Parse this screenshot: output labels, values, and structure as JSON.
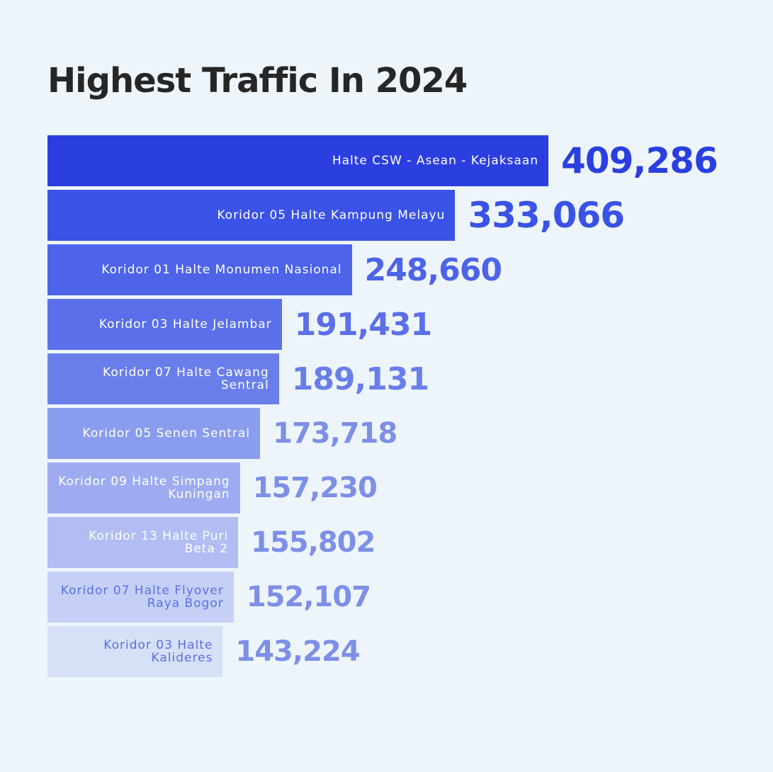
{
  "chart_data": {
    "type": "bar",
    "orientation": "horizontal",
    "title": "Highest Traffic In 2024",
    "categories": [
      "Halte CSW - Asean - Kejaksaan",
      "Koridor 05 Halte Kampung Melayu",
      "Koridor 01 Halte Monumen Nasional",
      "Koridor 03 Halte Jelambar",
      "Koridor 07 Halte Cawang Sentral",
      "Koridor 05 Senen Sentral",
      "Koridor 09 Halte Simpang Kuningan",
      "Koridor 13 Halte Puri Beta 2",
      "Koridor 07 Halte Flyover Raya Bogor",
      "Koridor 03 Halte Kalideres"
    ],
    "values": [
      409286,
      333066,
      248660,
      191431,
      189131,
      173718,
      157230,
      155802,
      152107,
      143224
    ],
    "value_labels": [
      "409,286",
      "333,066",
      "248,660",
      "191,431",
      "189,131",
      "173,718",
      "157,230",
      "155,802",
      "152,107",
      "143,224"
    ],
    "colors": [
      "#2b3fe0",
      "#3a52e6",
      "#4d63e8",
      "#5a6fe9",
      "#6a7eea",
      "#8a9cee",
      "#9eabf0",
      "#b1bdf3",
      "#c6d0f6",
      "#d6e0f7"
    ]
  }
}
